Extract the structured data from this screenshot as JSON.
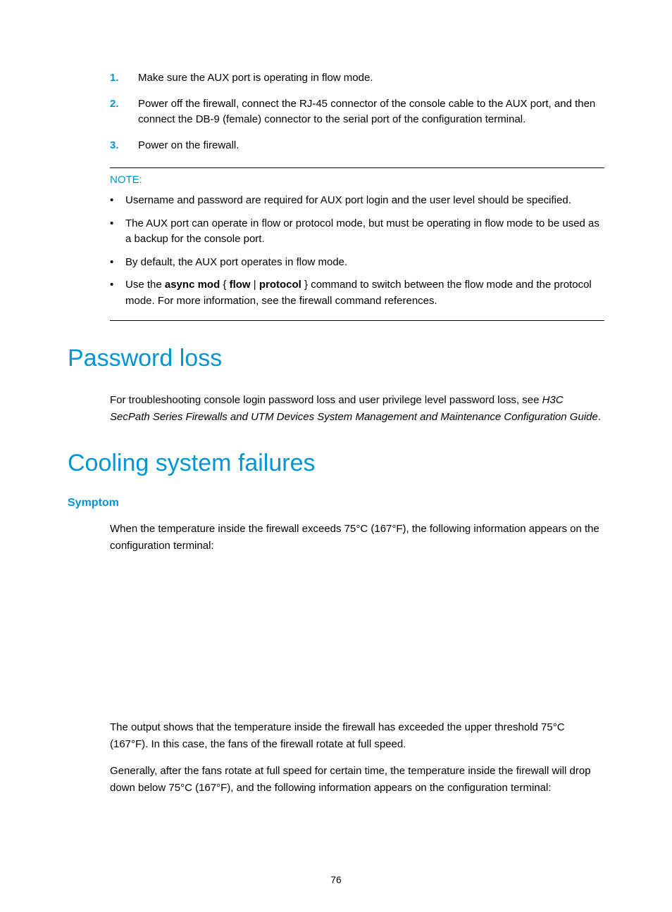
{
  "colors": {
    "accent": "#0096d6",
    "text": "#000000",
    "background": "#ffffff",
    "rule": "#000000"
  },
  "typography": {
    "body_fontsize": 15,
    "h1_fontsize": 34,
    "h3_fontsize": 16,
    "font_family": "Arial"
  },
  "ordered_steps": [
    {
      "num": "1.",
      "text": "Make sure the AUX port is operating in flow mode."
    },
    {
      "num": "2.",
      "text": "Power off the firewall, connect the RJ-45 connector of the console cable to the AUX port, and then connect the DB-9 (female) connector to the serial port of the configuration terminal."
    },
    {
      "num": "3.",
      "text": "Power on the firewall."
    }
  ],
  "note": {
    "label": "NOTE:",
    "items": [
      {
        "runs": [
          {
            "t": "Username and password are required for AUX port login and the user level should be specified."
          }
        ]
      },
      {
        "runs": [
          {
            "t": "The AUX port can operate in flow or protocol mode, but must be operating in flow mode to be used as a backup for the console port."
          }
        ]
      },
      {
        "runs": [
          {
            "t": "By default, the AUX port operates in flow mode."
          }
        ]
      },
      {
        "runs": [
          {
            "t": "Use the "
          },
          {
            "t": "async mod",
            "bold": true
          },
          {
            "t": " { "
          },
          {
            "t": "flow",
            "bold": true
          },
          {
            "t": " | "
          },
          {
            "t": "protocol",
            "bold": true
          },
          {
            "t": " } command to switch between the flow mode and the protocol mode. For more information, see the firewall command references."
          }
        ]
      }
    ]
  },
  "sections": {
    "password_loss": {
      "heading": "Password loss",
      "para_runs": [
        {
          "t": "For troubleshooting console login password loss and user privilege level password loss, see "
        },
        {
          "t": "H3C SecPath Series Firewalls and UTM Devices System Management and Maintenance Configuration Guide",
          "italic": true
        },
        {
          "t": "."
        }
      ]
    },
    "cooling": {
      "heading": "Cooling system failures",
      "symptom_label": "Symptom",
      "para1": "When the temperature inside the firewall exceeds 75°C (167°F), the following information appears on the configuration terminal:",
      "para2": "The output shows that the temperature inside the firewall has exceeded the upper threshold 75°C (167°F). In this case, the fans of the firewall rotate at full speed.",
      "para3": "Generally, after the fans rotate at full speed for certain time, the temperature inside the firewall will drop down below 75°C (167°F), and the following information appears on the configuration terminal:"
    }
  },
  "page_number": "76"
}
